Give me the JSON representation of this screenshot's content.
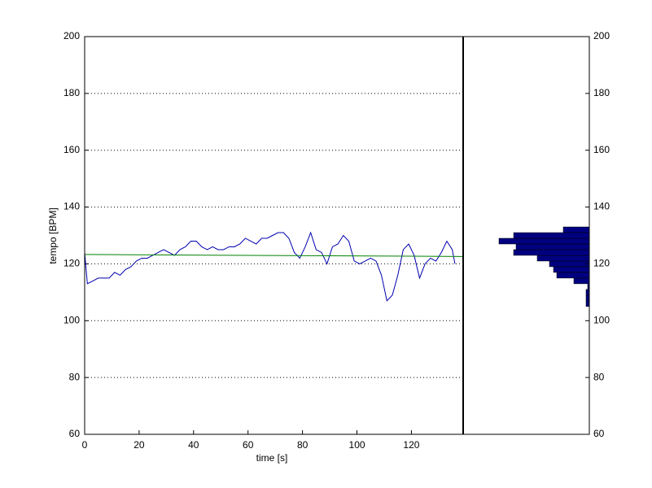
{
  "chart_data": [
    {
      "type": "line",
      "xlabel": "time [s]",
      "ylabel": "tempo [BPM]",
      "xlim": [
        0,
        139
      ],
      "ylim": [
        60,
        200
      ],
      "xticks": [
        0,
        20,
        40,
        60,
        80,
        100,
        120
      ],
      "yticks": [
        60,
        80,
        100,
        120,
        140,
        160,
        180,
        200
      ],
      "grid": true,
      "series": [
        {
          "color": "#0000b0",
          "x": [
            0,
            1,
            3,
            5,
            7,
            9,
            11,
            13,
            15,
            17,
            19,
            21,
            23,
            25,
            27,
            29,
            31,
            33,
            35,
            37,
            39,
            41,
            43,
            45,
            47,
            49,
            51,
            53,
            55,
            57,
            59,
            61,
            63,
            65,
            67,
            69,
            71,
            73,
            75,
            77,
            79,
            81,
            83,
            85,
            87,
            89,
            91,
            93,
            95,
            97,
            99,
            101,
            103,
            105,
            107,
            109,
            111,
            113,
            115,
            117,
            119,
            121,
            123,
            125,
            127,
            129,
            131,
            133,
            135,
            136
          ],
          "values": [
            124,
            113,
            114,
            115,
            115,
            115,
            117,
            116,
            118,
            119,
            121,
            122,
            122,
            123,
            124,
            125,
            124,
            123,
            125,
            126,
            128,
            128,
            126,
            125,
            126,
            125,
            125,
            126,
            126,
            127,
            129,
            128,
            127,
            129,
            129,
            130,
            131,
            131,
            129,
            124,
            122,
            126,
            131,
            125,
            124,
            120,
            126,
            127,
            130,
            128,
            121,
            120,
            121,
            122,
            121,
            116,
            107,
            109,
            116,
            125,
            127,
            123,
            115,
            120,
            122,
            121,
            124,
            128,
            125,
            120
          ]
        },
        {
          "color": "#008000",
          "x": [
            0,
            139
          ],
          "values": [
            123.3,
            122.6
          ]
        }
      ]
    },
    {
      "type": "histogram",
      "orientation": "horizontal",
      "color": "#000080",
      "bins": [
        105,
        107,
        109,
        111,
        113,
        115,
        117,
        119,
        121,
        123,
        125,
        127,
        129,
        131,
        133
      ],
      "counts": [
        4,
        4,
        4,
        2,
        19,
        40,
        44,
        49,
        64,
        93,
        90,
        111,
        93,
        32
      ],
      "xlim": [
        155,
        0
      ],
      "ylim": [
        60,
        200
      ],
      "yticks": [
        60,
        80,
        100,
        120,
        140,
        160,
        180,
        200
      ]
    }
  ]
}
